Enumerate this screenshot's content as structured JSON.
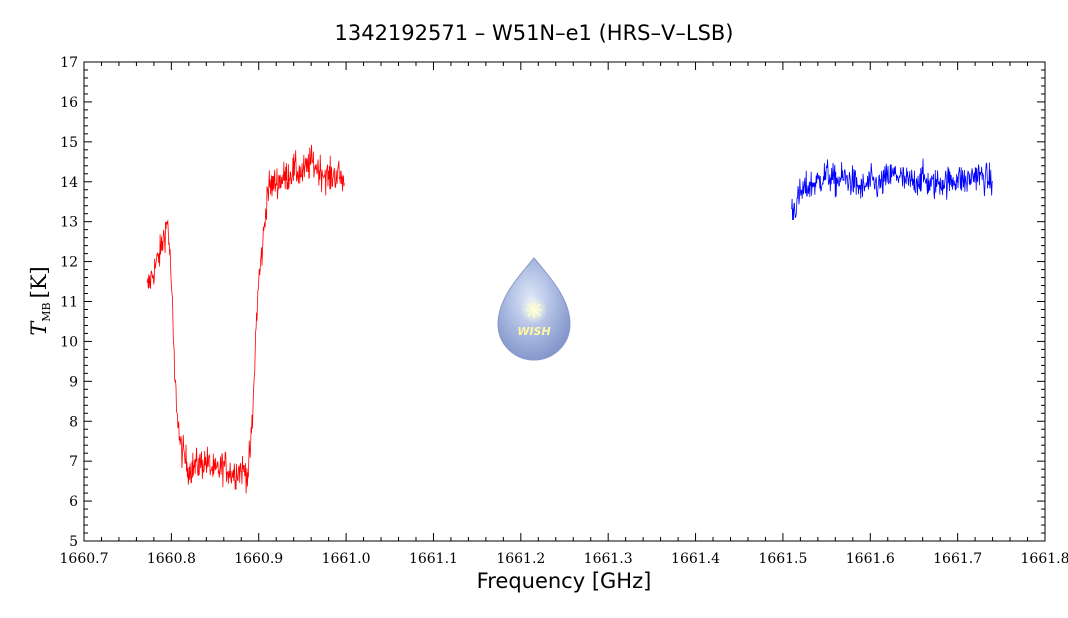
{
  "chart_data": {
    "type": "line",
    "title": "1342192571 – W51N–e1 (HRS–V–LSB)",
    "xlabel": "Frequency [GHz]",
    "ylabel_symbol": "T",
    "ylabel_subscript": "MB",
    "ylabel_unit": "[K]",
    "xlim": [
      1660.7,
      1661.8
    ],
    "ylim": [
      5,
      17
    ],
    "xticks": [
      "1660.7",
      "1660.8",
      "1660.9",
      "1661.0",
      "1661.1",
      "1661.2",
      "1661.3",
      "1661.4",
      "1661.5",
      "1661.6",
      "1661.7",
      "1661.8"
    ],
    "yticks": [
      "5",
      "6",
      "7",
      "8",
      "9",
      "10",
      "11",
      "12",
      "13",
      "14",
      "15",
      "16",
      "17"
    ],
    "grid": false,
    "series": [
      {
        "color": "#ff0000",
        "x": [
          1660.772,
          1660.777,
          1660.782,
          1660.787,
          1660.792,
          1660.796,
          1660.8,
          1660.804,
          1660.81,
          1660.82,
          1660.83,
          1660.84,
          1660.85,
          1660.86,
          1660.87,
          1660.88,
          1660.888,
          1660.893,
          1660.897,
          1660.9,
          1660.905,
          1660.91,
          1660.92,
          1660.93,
          1660.94,
          1660.95,
          1660.96,
          1660.97,
          1660.98,
          1660.99,
          1660.998
        ],
        "y": [
          11.3,
          11.6,
          11.9,
          12.2,
          12.7,
          13.0,
          11.5,
          9.0,
          7.4,
          6.8,
          6.9,
          7.0,
          6.7,
          6.9,
          6.7,
          6.8,
          6.7,
          8.0,
          10.4,
          11.5,
          12.5,
          13.8,
          14.0,
          14.1,
          14.3,
          14.2,
          14.5,
          14.3,
          14.1,
          14.2,
          14.0
        ],
        "noise": 0.75
      },
      {
        "color": "#0000ff",
        "x": [
          1661.51,
          1661.515,
          1661.52,
          1661.53,
          1661.54,
          1661.55,
          1661.56,
          1661.57,
          1661.58,
          1661.59,
          1661.6,
          1661.61,
          1661.62,
          1661.63,
          1661.64,
          1661.65,
          1661.66,
          1661.67,
          1661.68,
          1661.69,
          1661.7,
          1661.71,
          1661.72,
          1661.73,
          1661.74
        ],
        "y": [
          13.3,
          13.4,
          13.7,
          13.9,
          14.0,
          14.2,
          14.0,
          14.1,
          14.0,
          13.8,
          14.0,
          13.9,
          14.1,
          14.2,
          14.0,
          14.0,
          14.1,
          13.9,
          14.0,
          14.0,
          14.1,
          14.0,
          14.2,
          14.1,
          14.0
        ],
        "noise": 0.7
      }
    ],
    "logo": {
      "text": "WISH"
    }
  }
}
